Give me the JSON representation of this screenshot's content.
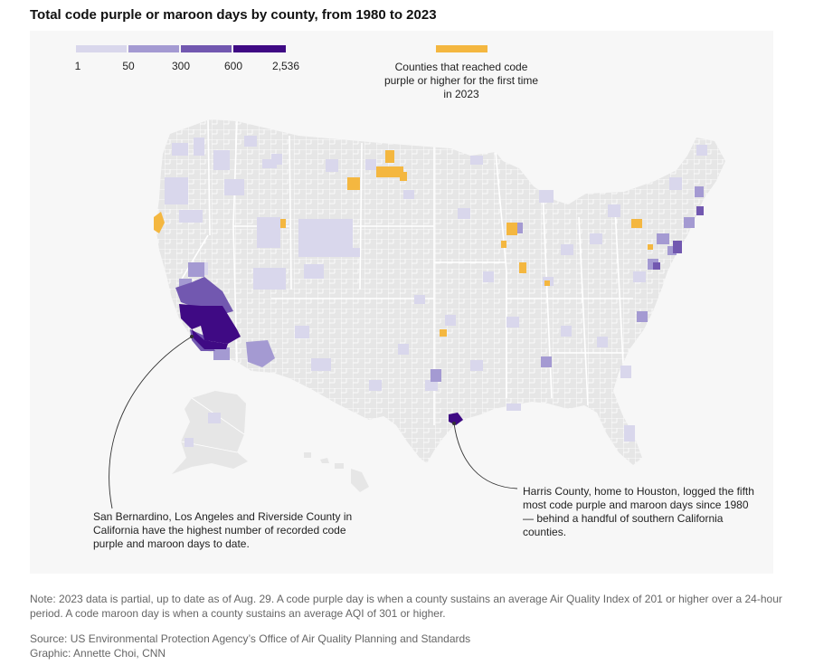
{
  "title": "Total code purple or maroon days by county, from 1980 to 2023",
  "legend": {
    "scale_labels": [
      "1",
      "50",
      "300",
      "600",
      "2,536"
    ],
    "scale_colors": [
      "#d9d7ec",
      "#a49ad2",
      "#7258b0",
      "#3f0a84"
    ],
    "first_time_label": "Counties that reached code purple or higher for the first time in 2023",
    "first_time_color": "#f4b740"
  },
  "colors": {
    "land": "#e6e6e6",
    "county_line": "#ffffff",
    "first_time": "#f4b740",
    "tier1": "#d9d7ec",
    "tier2": "#a49ad2",
    "tier3": "#7258b0",
    "tier4": "#3f0a84"
  },
  "annotations": {
    "california": "San Bernardino, Los Angeles and Riverside County in California have the highest number of recorded code purple and maroon days to date.",
    "harris": "Harris County, home to Houston, logged the fifth most code purple and maroon days since 1980 — behind a handful of southern California counties."
  },
  "note": "Note: 2023 data is partial, up to date as of Aug. 29. A code purple day is when a county sustains an average Air Quality Index of 201 or higher over a 24-hour period. A code maroon day is when a county sustains an average AQI of 301 or higher.",
  "source": "Source: US Environmental Protection Agency’s Office of Air Quality Planning and Standards",
  "credit": "Graphic: Annette Choi, CNN"
}
